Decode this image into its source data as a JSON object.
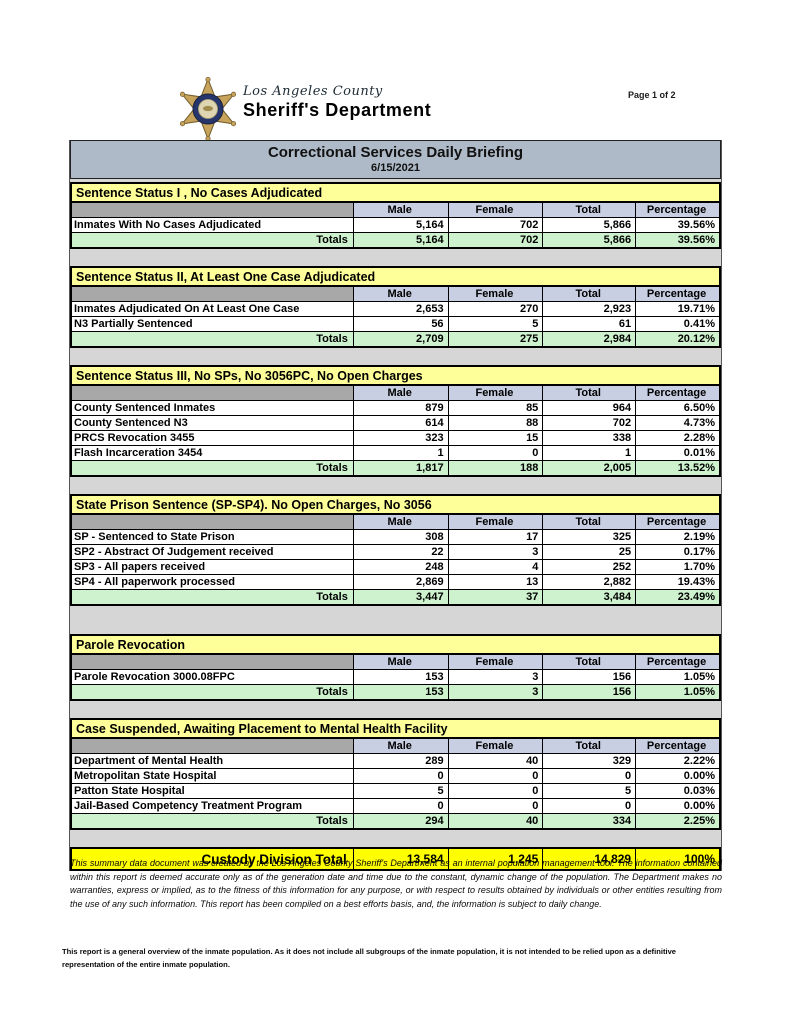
{
  "page": {
    "page_label": "Page 1 of 2"
  },
  "brand": {
    "county": "Los Angeles County",
    "department": "Sheriff's Department",
    "badge_icon": "sheriff-star-badge"
  },
  "report": {
    "title": "Correctional Services Daily Briefing",
    "date": "6/15/2021"
  },
  "columns": [
    "Male",
    "Female",
    "Total",
    "Percentage"
  ],
  "totals_label": "Totals",
  "sections": [
    {
      "title": "Sentence Status I , No Cases Adjudicated",
      "rows": [
        {
          "label": "Inmates With No Cases Adjudicated",
          "values": [
            "5,164",
            "702",
            "5,866",
            "39.56%"
          ]
        }
      ],
      "totals": [
        "5,164",
        "702",
        "5,866",
        "39.56%"
      ]
    },
    {
      "title": "Sentence Status II, At Least One Case Adjudicated",
      "rows": [
        {
          "label": "Inmates Adjudicated On At Least One Case",
          "values": [
            "2,653",
            "270",
            "2,923",
            "19.71%"
          ]
        },
        {
          "label": "N3 Partially Sentenced",
          "values": [
            "56",
            "5",
            "61",
            "0.41%"
          ]
        }
      ],
      "totals": [
        "2,709",
        "275",
        "2,984",
        "20.12%"
      ]
    },
    {
      "title": "Sentence Status III, No SPs, No 3056PC, No Open Charges",
      "rows": [
        {
          "label": "County Sentenced Inmates",
          "values": [
            "879",
            "85",
            "964",
            "6.50%"
          ]
        },
        {
          "label": "County Sentenced N3",
          "values": [
            "614",
            "88",
            "702",
            "4.73%"
          ]
        },
        {
          "label": "PRCS Revocation 3455",
          "values": [
            "323",
            "15",
            "338",
            "2.28%"
          ]
        },
        {
          "label": "Flash Incarceration 3454",
          "values": [
            "1",
            "0",
            "1",
            "0.01%"
          ]
        }
      ],
      "totals": [
        "1,817",
        "188",
        "2,005",
        "13.52%"
      ]
    },
    {
      "title": "State Prison Sentence (SP-SP4). No Open Charges, No 3056",
      "rows": [
        {
          "label": "SP - Sentenced to State Prison",
          "values": [
            "308",
            "17",
            "325",
            "2.19%"
          ]
        },
        {
          "label": "SP2 - Abstract Of Judgement received",
          "values": [
            "22",
            "3",
            "25",
            "0.17%"
          ]
        },
        {
          "label": "SP3 - All papers received",
          "values": [
            "248",
            "4",
            "252",
            "1.70%"
          ]
        },
        {
          "label": "SP4 - All paperwork processed",
          "values": [
            "2,869",
            "13",
            "2,882",
            "19.43%"
          ]
        }
      ],
      "totals": [
        "3,447",
        "37",
        "3,484",
        "23.49%"
      ]
    },
    {
      "title": "Parole Revocation",
      "rows": [
        {
          "label": "Parole Revocation 3000.08FPC",
          "values": [
            "153",
            "3",
            "156",
            "1.05%"
          ]
        }
      ],
      "totals": [
        "153",
        "3",
        "156",
        "1.05%"
      ]
    },
    {
      "title": "Case Suspended, Awaiting Placement to Mental Health Facility",
      "rows": [
        {
          "label": "Department of Mental Health",
          "values": [
            "289",
            "40",
            "329",
            "2.22%"
          ]
        },
        {
          "label": "Metropolitan State Hospital",
          "values": [
            "0",
            "0",
            "0",
            "0.00%"
          ]
        },
        {
          "label": "Patton State Hospital",
          "values": [
            "5",
            "0",
            "5",
            "0.03%"
          ]
        },
        {
          "label": "Jail-Based Competency Treatment Program",
          "values": [
            "0",
            "0",
            "0",
            "0.00%"
          ]
        }
      ],
      "totals": [
        "294",
        "40",
        "334",
        "2.25%"
      ]
    }
  ],
  "grand_total": {
    "label": "Custody Division Total",
    "values": [
      "13,584",
      "1,245",
      "14,829",
      "100%"
    ]
  },
  "footnotes": {
    "disclaimer": "This summary data document was created by the Los Angeles County Sheriff's Department as an internal population management tool.  The information contained within this report is deemed accurate only as of the generation date and time due to the constant, dynamic change of the population.  The Department makes no warranties, express or implied, as to the fitness of this information for any purpose, or with respect to results obtained by individuals or other entities resulting from the use of any such information.  This report has been compiled on a best efforts basis, and, the information is subject to daily change.",
    "overview_note": "This report is a general overview of the inmate population.  As it does not include all subgroups of the inmate population, it is not intended to be relied upon as a definitive representation of the entire inmate population."
  },
  "colors": {
    "section_title_yellow": "#ffff99",
    "grand_total_yellow": "#ffff00",
    "column_header_blue": "#c9cfe2",
    "totals_green": "#cdf2cd",
    "title_bar_gray_blue": "#aebac7",
    "gap_gray": "#d6d6d6",
    "label_header_gray": "#a8a8a8",
    "badge_gold": "#c8a35b",
    "badge_navy": "#26356b"
  }
}
